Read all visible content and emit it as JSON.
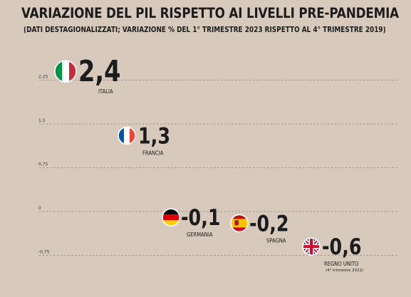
{
  "title": "VARIAZIONE DEL PIL RISPETTO AI LIVELLI PRE-PANDEMIA",
  "subtitle": "(DATI DESTAGIONALIZZATI; VARIAZIONE % DEL 1° TRIMESTRE 2023 RISPETTO AL 4° TRIMESTRE 2019)",
  "chart_data": {
    "type": "scatter",
    "title": "VARIAZIONE DEL PIL RISPETTO AI LIVELLI PRE-PANDEMIA",
    "subtitle": "(DATI DESTAGIONALIZZATI; VARIAZIONE % DEL 1° TRIMESTRE 2023 RISPETTO AL 4° TRIMESTRE 2019)",
    "yticks": [
      2.25,
      1.5,
      0.75,
      0,
      -0.75
    ],
    "ytick_labels": [
      "2,25",
      "1,5",
      "0,75",
      "0",
      "-0,75"
    ],
    "ylim": [
      -1.0,
      2.5
    ],
    "grid": true,
    "grid_style": "dashed",
    "points": [
      {
        "country": "ITALIA",
        "value": 2.4,
        "label": "2,4",
        "flag": "italy-flag"
      },
      {
        "country": "FRANCIA",
        "value": 1.3,
        "label": "1,3",
        "flag": "france-flag"
      },
      {
        "country": "GERMANIA",
        "value": -0.1,
        "label": "-0,1",
        "flag": "germany-flag"
      },
      {
        "country": "SPAGNA",
        "value": -0.2,
        "label": "-0,2",
        "flag": "spain-flag"
      },
      {
        "country": "REGNO UNITO",
        "value": -0.6,
        "label": "-0,6",
        "flag": "uk-flag",
        "note": "(4° trimestre 2022)"
      }
    ]
  }
}
